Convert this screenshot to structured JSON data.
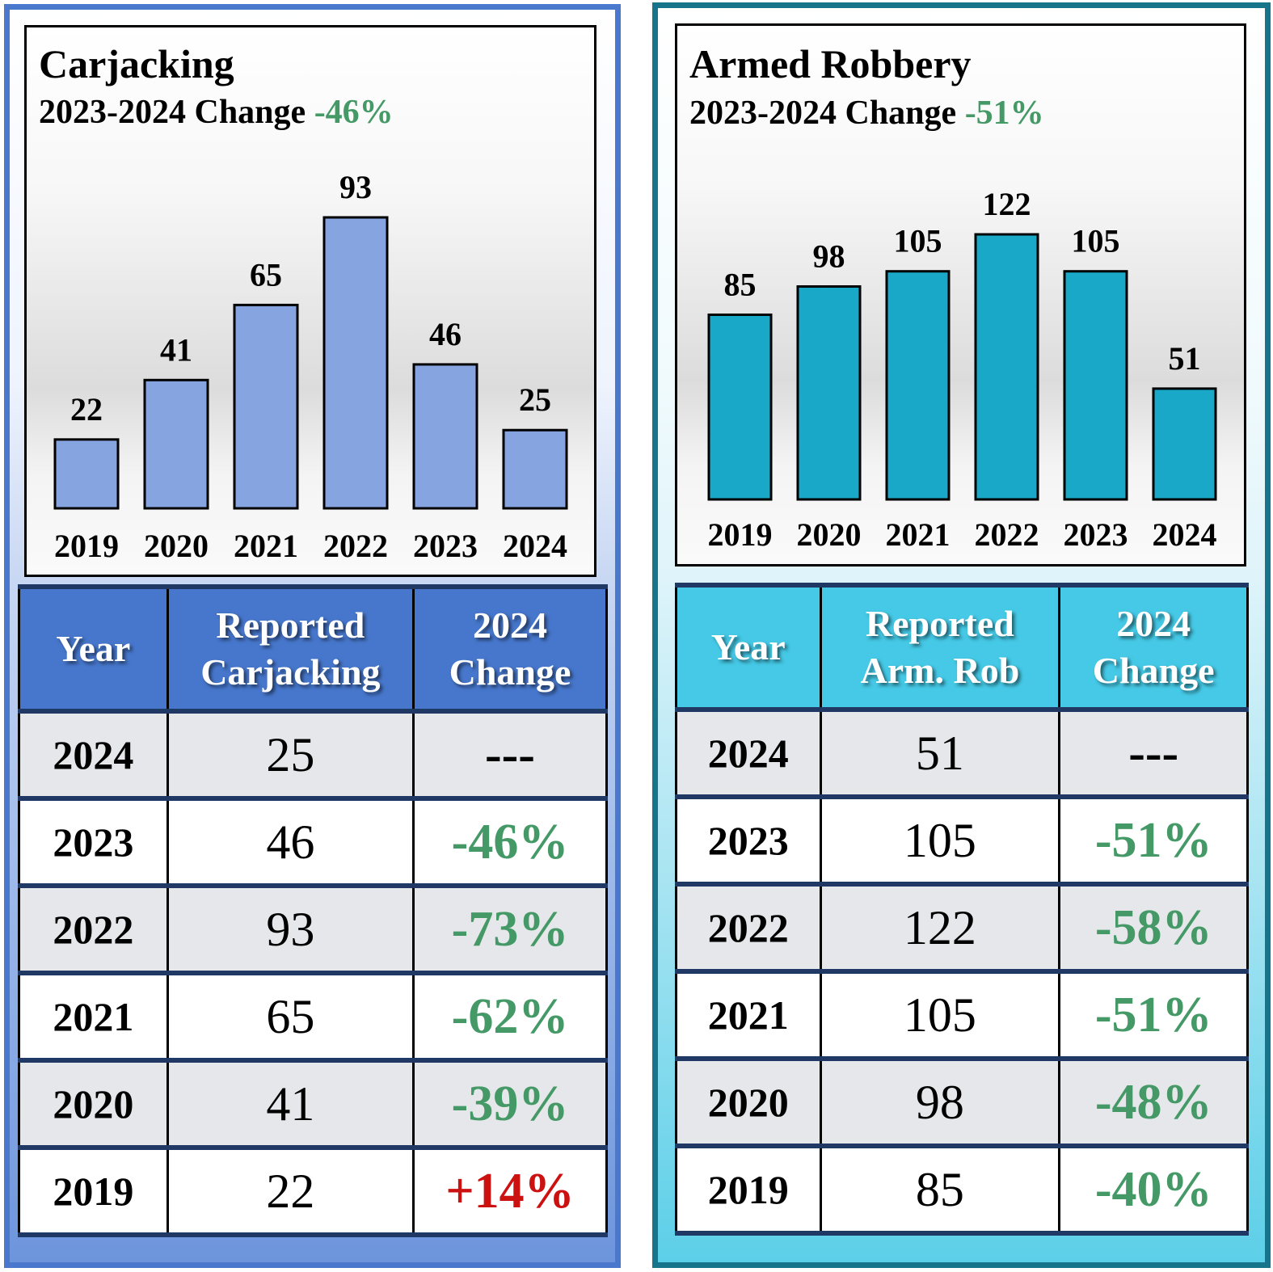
{
  "panels": [
    {
      "id": "carjacking",
      "title": "Carjacking",
      "subtitle_prefix": "2023-2024 Change",
      "subtitle_change": "-46%",
      "bar_color": "#86a5e0",
      "table_headers": [
        "Year",
        [
          "Reported",
          "Carjacking"
        ],
        [
          "2024",
          "Change"
        ]
      ],
      "rows": [
        {
          "year": "2024",
          "count": "25",
          "change": "---",
          "trend": "none"
        },
        {
          "year": "2023",
          "count": "46",
          "change": "-46%",
          "trend": "neg"
        },
        {
          "year": "2022",
          "count": "93",
          "change": "-73%",
          "trend": "neg"
        },
        {
          "year": "2021",
          "count": "65",
          "change": "-62%",
          "trend": "neg"
        },
        {
          "year": "2020",
          "count": "41",
          "change": "-39%",
          "trend": "neg"
        },
        {
          "year": "2019",
          "count": "22",
          "change": "+14%",
          "trend": "pos"
        }
      ]
    },
    {
      "id": "armed-robbery",
      "title": "Armed Robbery",
      "subtitle_prefix": "2023-2024 Change",
      "subtitle_change": "-51%",
      "bar_color": "#1aa8c9",
      "table_headers": [
        "Year",
        [
          "Reported",
          "Arm. Rob"
        ],
        [
          "2024",
          "Change"
        ]
      ],
      "rows": [
        {
          "year": "2024",
          "count": "51",
          "change": "---",
          "trend": "none"
        },
        {
          "year": "2023",
          "count": "105",
          "change": "-51%",
          "trend": "neg"
        },
        {
          "year": "2022",
          "count": "122",
          "change": "-58%",
          "trend": "neg"
        },
        {
          "year": "2021",
          "count": "105",
          "change": "-51%",
          "trend": "neg"
        },
        {
          "year": "2020",
          "count": "98",
          "change": "-48%",
          "trend": "neg"
        },
        {
          "year": "2019",
          "count": "85",
          "change": "-40%",
          "trend": "neg"
        }
      ]
    }
  ],
  "colors": {
    "decrease": "#449966",
    "increase": "#cc1111"
  },
  "chart_data": [
    {
      "type": "bar",
      "title": "Carjacking",
      "subtitle": "2023-2024 Change -46%",
      "categories": [
        "2019",
        "2020",
        "2021",
        "2022",
        "2023",
        "2024"
      ],
      "values": [
        22,
        41,
        65,
        93,
        46,
        25
      ],
      "data_labels": [
        "22",
        "41",
        "65",
        "93",
        "46",
        "25"
      ],
      "xlabel": "",
      "ylabel": "",
      "ylim": [
        0,
        93
      ],
      "grid": false,
      "legend": "none"
    },
    {
      "type": "bar",
      "title": "Armed Robbery",
      "subtitle": "2023-2024 Change -51%",
      "categories": [
        "2019",
        "2020",
        "2021",
        "2022",
        "2023",
        "2024"
      ],
      "values": [
        85,
        98,
        105,
        122,
        105,
        51
      ],
      "data_labels": [
        "85",
        "98",
        "105",
        "122",
        "105",
        "51"
      ],
      "xlabel": "",
      "ylabel": "",
      "ylim": [
        0,
        122
      ],
      "grid": false,
      "legend": "none"
    }
  ]
}
